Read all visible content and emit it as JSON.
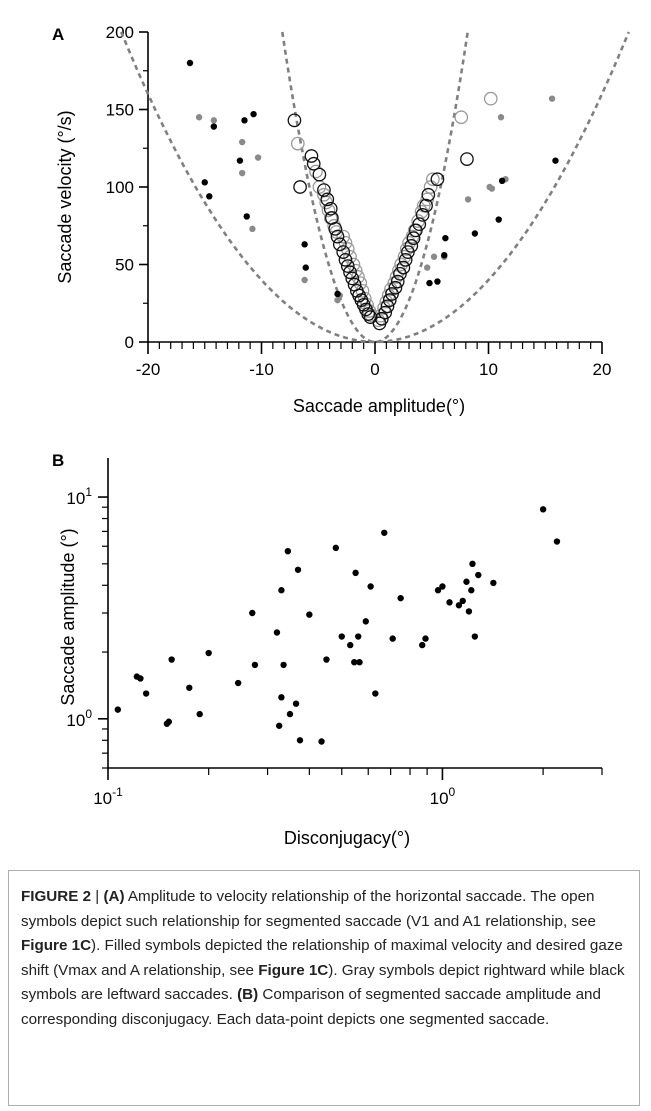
{
  "chart_data": [
    {
      "panel_label": "A",
      "type": "scatter",
      "title": "",
      "xlabel": "Saccade amplitude(°)",
      "ylabel": "Saccade velocity (°/s)",
      "xlim": [
        -20,
        20
      ],
      "ylim": [
        0,
        200
      ],
      "x_ticks": [
        -20,
        -10,
        0,
        10,
        20
      ],
      "y_ticks": [
        0,
        50,
        100,
        150,
        200
      ],
      "grid": false,
      "series": [
        {
          "marker": "filled",
          "color": "#8a8a8a",
          "points": [
            [
              -15.5,
              145
            ],
            [
              -14.2,
              143
            ],
            [
              -11.7,
              129
            ],
            [
              -11.7,
              109
            ],
            [
              -10.3,
              119
            ],
            [
              -10.8,
              73
            ],
            [
              -6.2,
              40
            ],
            [
              -3.3,
              27
            ],
            [
              -3.1,
              30
            ],
            [
              4.6,
              48
            ],
            [
              5.2,
              55
            ],
            [
              6.1,
              55
            ],
            [
              8.2,
              92
            ],
            [
              10.1,
              100
            ],
            [
              10.3,
              99
            ],
            [
              11.1,
              145
            ],
            [
              11.5,
              105
            ],
            [
              15.6,
              157
            ]
          ]
        },
        {
          "marker": "filled",
          "color": "#000000",
          "points": [
            [
              -16.3,
              180
            ],
            [
              -15.0,
              103
            ],
            [
              -14.6,
              94
            ],
            [
              -14.2,
              139
            ],
            [
              -11.9,
              117
            ],
            [
              -11.5,
              143
            ],
            [
              -11.3,
              81
            ],
            [
              -10.7,
              147
            ],
            [
              -6.2,
              63
            ],
            [
              -6.1,
              48
            ],
            [
              -3.3,
              31
            ],
            [
              4.8,
              38
            ],
            [
              5.5,
              39
            ],
            [
              6.2,
              67
            ],
            [
              6.1,
              56
            ],
            [
              8.8,
              70
            ],
            [
              10.9,
              79
            ],
            [
              11.2,
              104
            ],
            [
              15.9,
              117
            ]
          ]
        },
        {
          "marker": "open",
          "color": "#9a9a9a",
          "points": [
            [
              -6.8,
              128
            ],
            [
              -5.2,
              110
            ],
            [
              -4.9,
              100
            ],
            [
              -4.5,
              95
            ],
            [
              -4.3,
              90
            ],
            [
              -4.1,
              85
            ],
            [
              -3.9,
              80
            ],
            [
              -3.6,
              75
            ],
            [
              -3.4,
              71
            ],
            [
              -2.8,
              68
            ],
            [
              -2.6,
              64
            ],
            [
              -2.4,
              60
            ],
            [
              -2.2,
              55
            ],
            [
              -1.9,
              50
            ],
            [
              -1.7,
              46
            ],
            [
              -1.5,
              42
            ],
            [
              -1.3,
              38
            ],
            [
              -1.1,
              33
            ],
            [
              -0.9,
              28
            ],
            [
              -0.7,
              24
            ],
            [
              -0.5,
              20
            ],
            [
              -0.3,
              17
            ],
            [
              0.3,
              14
            ],
            [
              0.5,
              17
            ],
            [
              0.8,
              22
            ],
            [
              1.0,
              26
            ],
            [
              1.2,
              30
            ],
            [
              1.4,
              34
            ],
            [
              1.7,
              38
            ],
            [
              1.9,
              42
            ],
            [
              2.1,
              46
            ],
            [
              2.3,
              50
            ],
            [
              2.6,
              55
            ],
            [
              2.8,
              60
            ],
            [
              3.0,
              64
            ],
            [
              3.3,
              68
            ],
            [
              3.5,
              72
            ],
            [
              3.8,
              78
            ],
            [
              4.1,
              84
            ],
            [
              4.3,
              88
            ],
            [
              4.6,
              92
            ],
            [
              4.9,
              100
            ],
            [
              5.1,
              105
            ],
            [
              7.6,
              145
            ],
            [
              10.2,
              157
            ]
          ]
        },
        {
          "marker": "open",
          "color": "#111111",
          "points": [
            [
              -7.1,
              143
            ],
            [
              -6.6,
              100
            ],
            [
              -5.6,
              120
            ],
            [
              -5.4,
              115
            ],
            [
              -4.9,
              108
            ],
            [
              -4.5,
              98
            ],
            [
              -4.2,
              92
            ],
            [
              -3.9,
              86
            ],
            [
              -3.8,
              80
            ],
            [
              -3.5,
              73
            ],
            [
              -3.3,
              68
            ],
            [
              -3.1,
              63
            ],
            [
              -2.8,
              58
            ],
            [
              -2.6,
              53
            ],
            [
              -2.4,
              49
            ],
            [
              -2.2,
              45
            ],
            [
              -2.0,
              41
            ],
            [
              -1.8,
              37
            ],
            [
              -1.6,
              33
            ],
            [
              -1.4,
              30
            ],
            [
              -1.2,
              27
            ],
            [
              -1.0,
              24
            ],
            [
              -0.8,
              21
            ],
            [
              -0.6,
              18
            ],
            [
              -0.4,
              16
            ],
            [
              0.4,
              12
            ],
            [
              0.6,
              15
            ],
            [
              0.9,
              19
            ],
            [
              1.1,
              23
            ],
            [
              1.3,
              27
            ],
            [
              1.5,
              31
            ],
            [
              1.8,
              35
            ],
            [
              2.0,
              39
            ],
            [
              2.2,
              44
            ],
            [
              2.5,
              48
            ],
            [
              2.7,
              53
            ],
            [
              2.9,
              58
            ],
            [
              3.2,
              62
            ],
            [
              3.4,
              67
            ],
            [
              3.6,
              72
            ],
            [
              3.9,
              76
            ],
            [
              4.2,
              82
            ],
            [
              4.5,
              88
            ],
            [
              4.7,
              95
            ],
            [
              5.5,
              105
            ],
            [
              8.1,
              118
            ]
          ]
        }
      ],
      "reference_curves": [
        {
          "style": "dashed",
          "color": "#808080",
          "scale": 3.0
        },
        {
          "style": "dashed",
          "color": "#808080",
          "scale": 0.4
        }
      ]
    },
    {
      "panel_label": "B",
      "type": "scatter",
      "title": "",
      "xlabel": "Disconjugacy(°)",
      "ylabel": "Saccade amplitude (°)",
      "x_scale": "log",
      "y_scale": "log",
      "xlim": [
        0.1,
        3.0
      ],
      "ylim": [
        0.6,
        15
      ],
      "x_ticks": [
        {
          "base": "10",
          "exp": "-1",
          "value": 0.1
        },
        {
          "base": "10",
          "exp": "0",
          "value": 1
        }
      ],
      "y_ticks": [
        {
          "base": "10",
          "exp": "0",
          "value": 1
        },
        {
          "base": "10",
          "exp": "1",
          "value": 10
        }
      ],
      "grid": false,
      "series": [
        {
          "marker": "filled",
          "color": "#000000",
          "points": [
            [
              0.107,
              1.1
            ],
            [
              0.122,
              1.55
            ],
            [
              0.125,
              1.52
            ],
            [
              0.13,
              1.3
            ],
            [
              0.15,
              0.95
            ],
            [
              0.152,
              0.97
            ],
            [
              0.155,
              1.85
            ],
            [
              0.175,
              1.38
            ],
            [
              0.188,
              1.05
            ],
            [
              0.2,
              1.98
            ],
            [
              0.245,
              1.45
            ],
            [
              0.27,
              3.0
            ],
            [
              0.275,
              1.75
            ],
            [
              0.32,
              2.45
            ],
            [
              0.325,
              0.93
            ],
            [
              0.33,
              3.8
            ],
            [
              0.33,
              1.25
            ],
            [
              0.335,
              1.75
            ],
            [
              0.345,
              5.7
            ],
            [
              0.35,
              1.05
            ],
            [
              0.365,
              1.17
            ],
            [
              0.37,
              4.7
            ],
            [
              0.375,
              0.8
            ],
            [
              0.4,
              2.95
            ],
            [
              0.435,
              0.79
            ],
            [
              0.45,
              1.85
            ],
            [
              0.48,
              5.9
            ],
            [
              0.5,
              2.35
            ],
            [
              0.53,
              2.15
            ],
            [
              0.545,
              1.8
            ],
            [
              0.55,
              4.55
            ],
            [
              0.56,
              2.35
            ],
            [
              0.565,
              1.8
            ],
            [
              0.59,
              2.75
            ],
            [
              0.61,
              3.95
            ],
            [
              0.63,
              1.3
            ],
            [
              0.67,
              6.9
            ],
            [
              0.71,
              2.3
            ],
            [
              0.75,
              3.5
            ],
            [
              0.87,
              2.15
            ],
            [
              0.89,
              2.3
            ],
            [
              0.97,
              3.8
            ],
            [
              1.0,
              3.95
            ],
            [
              1.05,
              3.35
            ],
            [
              1.12,
              3.25
            ],
            [
              1.15,
              3.4
            ],
            [
              1.18,
              4.15
            ],
            [
              1.2,
              3.05
            ],
            [
              1.22,
              3.8
            ],
            [
              1.23,
              5.0
            ],
            [
              1.25,
              2.35
            ],
            [
              1.28,
              4.45
            ],
            [
              1.42,
              4.1
            ],
            [
              2.0,
              8.8
            ],
            [
              2.2,
              6.3
            ]
          ]
        }
      ]
    }
  ],
  "caption": {
    "figure_label": "FIGURE 2",
    "separator": " | ",
    "part_a_label": "(A)",
    "part_a_text": " Amplitude to velocity relationship of the horizontal saccade. The open symbols depict such relationship for segmented saccade (V1 and A1 relationship, see ",
    "ref1": "Figure 1C",
    "mid1": "). Filled symbols depicted the relationship of maximal velocity and desired gaze shift (Vmax and A relationship, see ",
    "ref2": "Figure 1C",
    "mid2": "). Gray symbols depict rightward while black symbols are leftward saccades. ",
    "part_b_label": "(B)",
    "part_b_text": " Comparison of segmented saccade amplitude and corresponding disconjugacy. Each data-point depicts one segmented saccade."
  }
}
